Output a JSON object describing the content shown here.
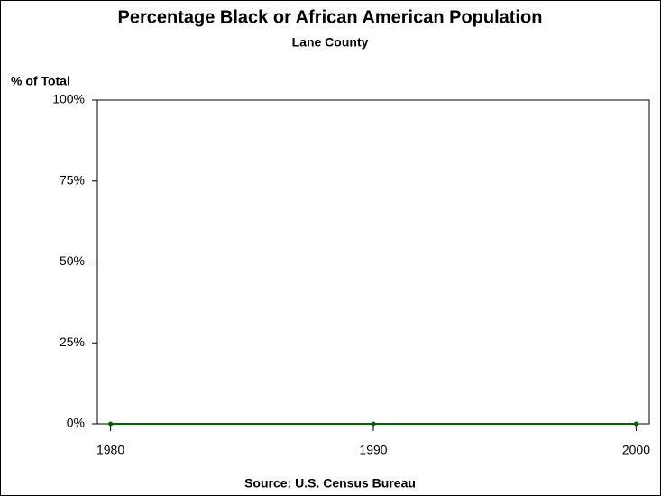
{
  "chart_data": {
    "type": "line",
    "title": "Percentage Black or African American Population",
    "subtitle": "Lane County",
    "y_label": "% of Total",
    "source": "Source: U.S. Census Bureau",
    "x": [
      1980,
      1990,
      2000
    ],
    "series": [
      {
        "name": "Lane County",
        "color": "#006400",
        "values": [
          0,
          0,
          0
        ]
      }
    ],
    "xlim": [
      1979.5,
      2000.5
    ],
    "xticks": [
      1980,
      1990,
      2000
    ],
    "ylim": [
      0,
      100
    ],
    "yticks": [
      {
        "value": 0,
        "label": "0%"
      },
      {
        "value": 25,
        "label": "25%"
      },
      {
        "value": 50,
        "label": "50%"
      },
      {
        "value": 75,
        "label": "75%"
      },
      {
        "value": 100,
        "label": "100%"
      }
    ]
  }
}
